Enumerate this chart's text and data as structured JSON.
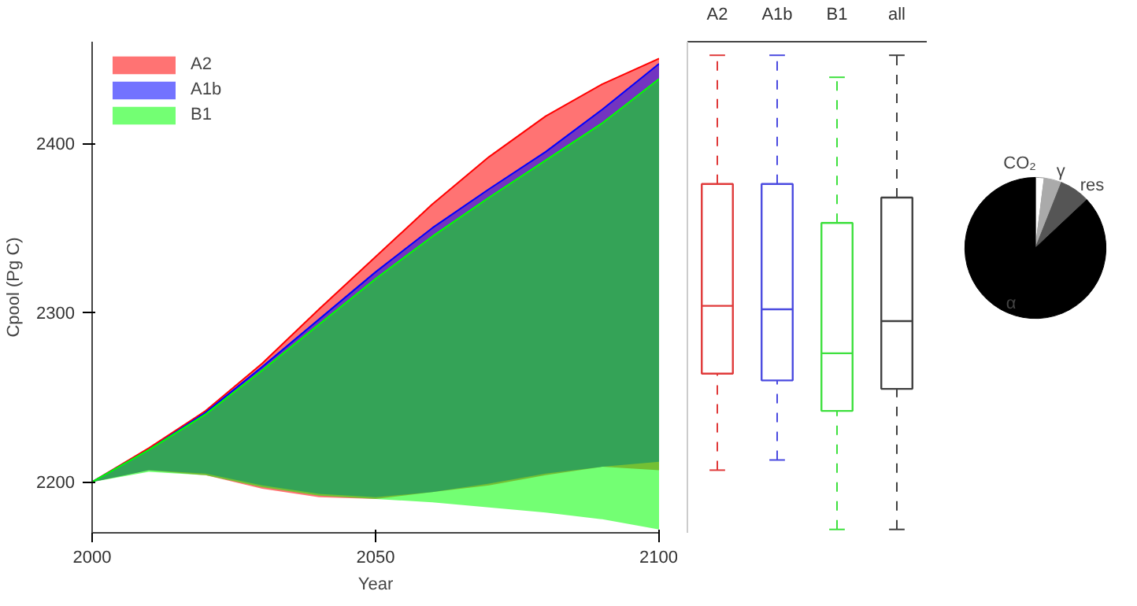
{
  "chart_data": [
    {
      "type": "line",
      "xlabel": "Year",
      "ylabel": "Cpool (Pg C)",
      "x": [
        2000,
        2010,
        2020,
        2030,
        2040,
        2050,
        2060,
        2070,
        2080,
        2090,
        2100
      ],
      "xlim": [
        2000,
        2100
      ],
      "xticks": [
        2000,
        2050,
        2100
      ],
      "ylim": [
        2170,
        2460
      ],
      "yticks": [
        2200,
        2300,
        2400
      ],
      "grid": false,
      "legend": "top left",
      "series": [
        {
          "name": "A2",
          "color": "#ff0000",
          "values": [
            2200,
            2220,
            2242,
            2270,
            2302,
            2333,
            2364,
            2392,
            2416,
            2435,
            2450
          ],
          "upper": [
            2200,
            2220,
            2242,
            2270,
            2302,
            2333,
            2364,
            2392,
            2416,
            2435,
            2450
          ],
          "lower": [
            2200,
            2207,
            2204,
            2196,
            2191,
            2190,
            2194,
            2198,
            2204,
            2209,
            2207
          ]
        },
        {
          "name": "A1b",
          "color": "#0000ff",
          "values": [
            2200,
            2219,
            2241,
            2268,
            2296,
            2324,
            2350,
            2373,
            2395,
            2420,
            2447
          ],
          "upper": [
            2200,
            2219,
            2241,
            2268,
            2296,
            2324,
            2350,
            2373,
            2395,
            2420,
            2447
          ],
          "lower": [
            2200,
            2207,
            2205,
            2198,
            2193,
            2191,
            2194,
            2199,
            2205,
            2209,
            2212
          ]
        },
        {
          "name": "B1",
          "color": "#00ff00",
          "values": [
            2200,
            2219,
            2240,
            2266,
            2293,
            2320,
            2345,
            2368,
            2390,
            2412,
            2438
          ],
          "upper": [
            2200,
            2219,
            2240,
            2266,
            2293,
            2320,
            2345,
            2368,
            2390,
            2412,
            2438
          ],
          "lower": [
            2200,
            2206,
            2204,
            2197,
            2192,
            2190,
            2188,
            2185,
            2182,
            2178,
            2172
          ]
        }
      ]
    },
    {
      "type": "box",
      "categories": [
        "A2",
        "A1b",
        "B1",
        "all"
      ],
      "colors": [
        "#e03a3a",
        "#4a4ae0",
        "#3ee03e",
        "#404040"
      ],
      "ylim": [
        2170,
        2460
      ],
      "tick_labels": "x",
      "line_style": "dashed",
      "boxes": [
        {
          "low": 2207,
          "q1": 2264,
          "median": 2304,
          "q3": 2376,
          "high": 2452
        },
        {
          "low": 2213,
          "q1": 2260,
          "median": 2302,
          "q3": 2376,
          "high": 2452
        },
        {
          "low": 2172,
          "q1": 2242,
          "median": 2276,
          "q3": 2353,
          "high": 2439
        },
        {
          "low": 2172,
          "q1": 2255,
          "median": 2295,
          "q3": 2368,
          "high": 2452
        }
      ]
    },
    {
      "type": "pie",
      "categories": [
        "CO₂",
        "γ",
        "res",
        "α"
      ],
      "values": [
        2,
        4,
        7,
        87
      ],
      "colors": [
        "#ffffff",
        "#aaaaaa",
        "#555555",
        "#000000"
      ]
    }
  ]
}
